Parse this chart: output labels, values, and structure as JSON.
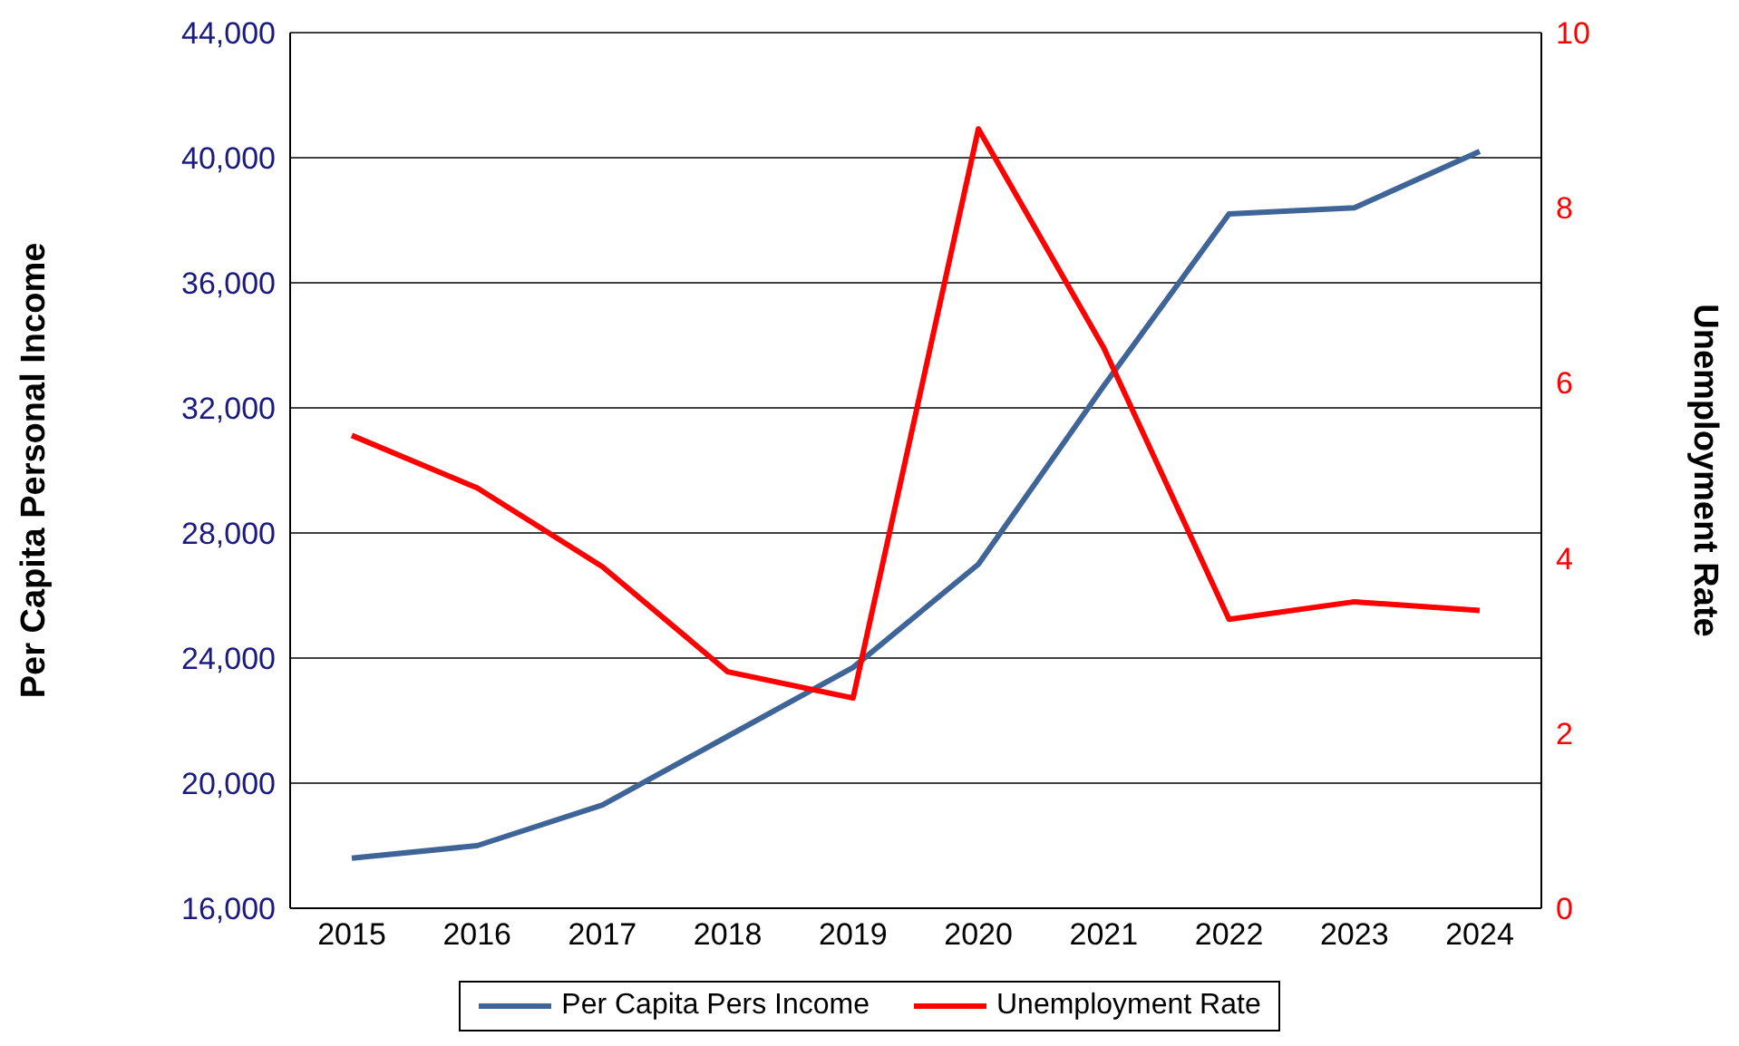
{
  "chart_data": {
    "type": "line",
    "categories": [
      "2015",
      "2016",
      "2017",
      "2018",
      "2019",
      "2020",
      "2021",
      "2022",
      "2023",
      "2024"
    ],
    "series": [
      {
        "name": "Per Capita Pers Income",
        "color": "#3f6497",
        "values": [
          17600,
          18000,
          19300,
          21500,
          23700,
          27000,
          32700,
          38200,
          38400,
          40200
        ]
      },
      {
        "name": "Unemployment Rate",
        "color": "#ff0000",
        "axis": "y2",
        "values": [
          5.4,
          4.8,
          3.9,
          2.7,
          2.4,
          8.9,
          6.4,
          3.3,
          3.5,
          3.4
        ]
      }
    ],
    "ylabel": "Per Capita Personal Income",
    "y2label": "Unemployment Rate",
    "ylim": [
      16000,
      44000
    ],
    "yticks": [
      {
        "value": 16000,
        "label": "16,000"
      },
      {
        "value": 20000,
        "label": "20,000"
      },
      {
        "value": 24000,
        "label": "24,000"
      },
      {
        "value": 28000,
        "label": "28,000"
      },
      {
        "value": 32000,
        "label": "32,000"
      },
      {
        "value": 36000,
        "label": "36,000"
      },
      {
        "value": 40000,
        "label": "40,000"
      },
      {
        "value": 44000,
        "label": "44,000"
      }
    ],
    "y2lim": [
      0,
      10
    ],
    "y2ticks": [
      0,
      2,
      4,
      6,
      8,
      10
    ],
    "grid": "y",
    "legend": "bottom",
    "marker": "none",
    "line_style": "solid"
  }
}
